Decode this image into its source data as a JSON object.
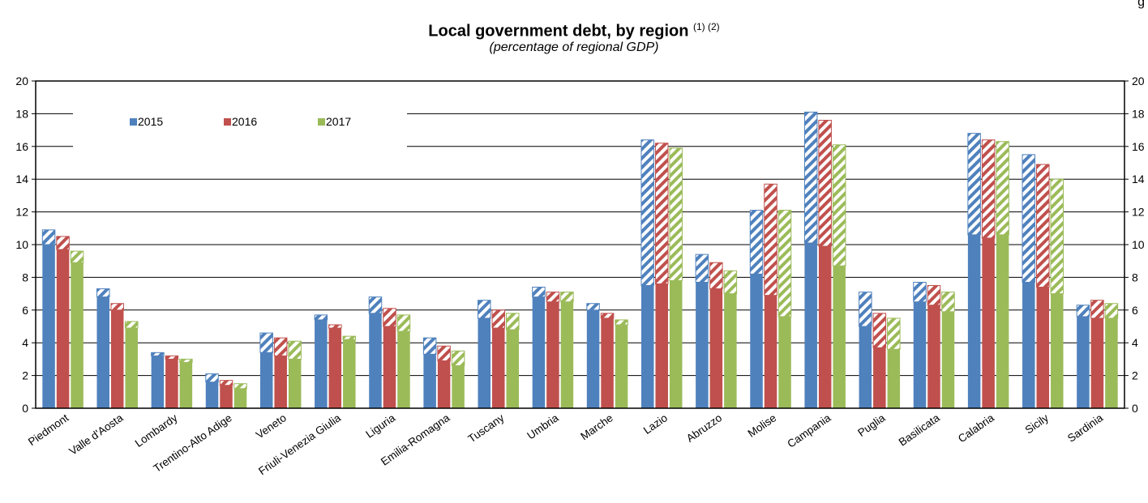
{
  "corner_mark": "g",
  "chart_data": {
    "type": "bar",
    "title": "Local government debt, by region",
    "title_notes": "(1) (2)",
    "subtitle": "(percentage of regional GDP)",
    "categories": [
      "Piedmont",
      "Valle d'Aosta",
      "Lombardy",
      "Trentino-Alto Adige",
      "Veneto",
      "Friuli-Venezia Giulia",
      "Liguria",
      "Emilia-Romagna",
      "Tuscany",
      "Umbria",
      "Marche",
      "Lazio",
      "Abruzzo",
      "Molise",
      "Campania",
      "Puglia",
      "Basilicata",
      "Calabria",
      "Sicily",
      "Sardinia"
    ],
    "series": [
      {
        "name": "2015",
        "color": "#4F81BD",
        "values": [
          10.9,
          7.3,
          3.4,
          2.1,
          4.6,
          5.7,
          6.8,
          4.3,
          6.6,
          7.4,
          6.4,
          16.4,
          9.4,
          12.1,
          18.1,
          7.1,
          7.7,
          16.8,
          15.5,
          6.3
        ],
        "solid": [
          10.0,
          6.8,
          3.2,
          1.6,
          3.4,
          5.4,
          5.8,
          3.3,
          5.5,
          6.8,
          6.0,
          7.5,
          7.7,
          8.2,
          10.1,
          5.0,
          6.5,
          10.6,
          7.7,
          5.6
        ]
      },
      {
        "name": "2016",
        "color": "#C0504D",
        "values": [
          10.5,
          6.4,
          3.2,
          1.7,
          4.3,
          5.1,
          6.1,
          3.8,
          6.0,
          7.1,
          5.8,
          16.2,
          8.9,
          13.7,
          17.6,
          5.8,
          7.5,
          16.4,
          14.9,
          6.6
        ],
        "solid": [
          9.7,
          6.0,
          3.0,
          1.4,
          3.2,
          4.9,
          5.0,
          2.9,
          4.9,
          6.5,
          5.5,
          7.6,
          7.3,
          6.9,
          9.9,
          3.7,
          6.3,
          10.4,
          7.4,
          5.5
        ]
      },
      {
        "name": "2017",
        "color": "#9BBB59",
        "values": [
          9.6,
          5.3,
          3.0,
          1.5,
          4.1,
          4.4,
          5.7,
          3.5,
          5.8,
          7.1,
          5.4,
          15.9,
          8.4,
          12.1,
          16.1,
          5.5,
          7.1,
          16.3,
          14.0,
          6.4
        ],
        "solid": [
          8.9,
          4.9,
          2.8,
          1.2,
          3.0,
          4.2,
          4.7,
          2.6,
          4.8,
          6.5,
          5.1,
          7.8,
          7.0,
          5.6,
          8.7,
          3.6,
          5.9,
          10.6,
          7.0,
          5.5
        ]
      }
    ],
    "ylim": [
      0,
      20
    ],
    "yticks": [
      "0",
      "2",
      "4",
      "6",
      "8",
      "10",
      "12",
      "14",
      "16",
      "18",
      "20"
    ],
    "grid": true,
    "legend_position": "top-left, inside plot"
  }
}
